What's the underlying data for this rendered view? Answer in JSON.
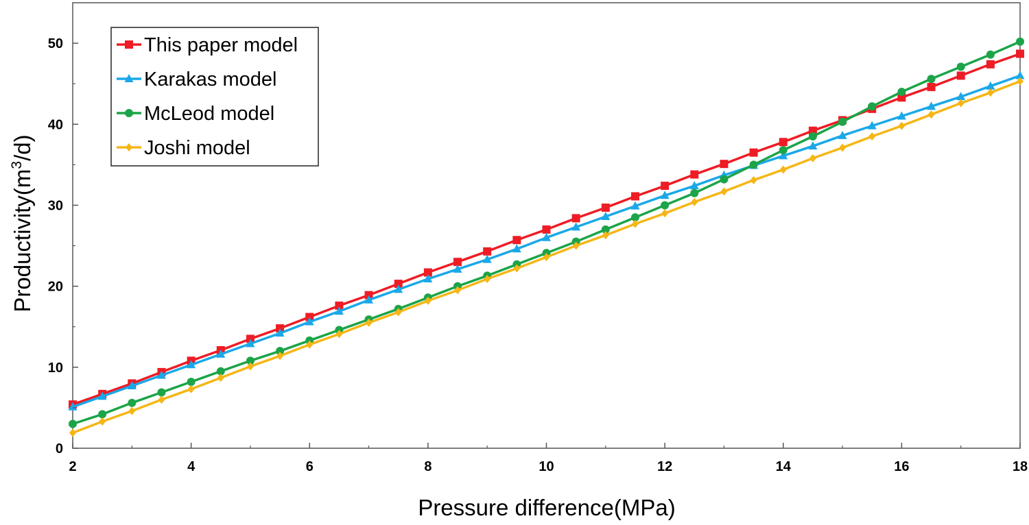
{
  "chart_data": {
    "type": "line",
    "xlabel": "Pressure difference(MPa)",
    "ylabel_prefix": "Productivity(m",
    "ylabel_sup": "3",
    "ylabel_suffix": "/d)",
    "xlim": [
      2,
      18
    ],
    "ylim": [
      0,
      55
    ],
    "xticks": [
      2,
      4,
      6,
      8,
      10,
      12,
      14,
      16,
      18
    ],
    "yticks": [
      0,
      10,
      20,
      30,
      40,
      50
    ],
    "grid": false,
    "legend_position": "top-left",
    "x": [
      2,
      2.5,
      3,
      3.5,
      4,
      4.5,
      5,
      5.5,
      6,
      6.5,
      7,
      7.5,
      8,
      8.5,
      9,
      9.5,
      10,
      10.5,
      11,
      11.5,
      12,
      12.5,
      13,
      13.5,
      14,
      14.5,
      15,
      15.5,
      16,
      16.5,
      17,
      17.5,
      18
    ],
    "series": [
      {
        "name": "This paper model",
        "color": "#ee1c25",
        "marker": "square",
        "values": [
          5.4,
          6.7,
          8.0,
          9.4,
          10.8,
          12.1,
          13.5,
          14.8,
          16.2,
          17.6,
          18.9,
          20.3,
          21.7,
          23.0,
          24.3,
          25.7,
          27.0,
          28.4,
          29.7,
          31.1,
          32.4,
          33.8,
          35.1,
          36.5,
          37.8,
          39.2,
          40.5,
          41.9,
          43.3,
          44.6,
          46.0,
          47.4,
          48.7
        ]
      },
      {
        "name": "Karakas model",
        "color": "#1aa8e8",
        "marker": "triangle",
        "values": [
          5.1,
          6.4,
          7.7,
          9.0,
          10.3,
          11.6,
          12.9,
          14.2,
          15.6,
          16.9,
          18.3,
          19.6,
          20.9,
          22.1,
          23.3,
          24.6,
          26.0,
          27.3,
          28.6,
          29.9,
          31.2,
          32.4,
          33.7,
          34.9,
          36.1,
          37.3,
          38.6,
          39.8,
          41.0,
          42.2,
          43.4,
          44.7,
          46.0
        ]
      },
      {
        "name": "McLeod model",
        "color": "#1ca448",
        "marker": "circle",
        "values": [
          3.0,
          4.2,
          5.6,
          6.9,
          8.2,
          9.5,
          10.8,
          12.0,
          13.3,
          14.6,
          15.9,
          17.2,
          18.6,
          20.0,
          21.3,
          22.7,
          24.1,
          25.5,
          27.0,
          28.5,
          30.0,
          31.5,
          33.2,
          35.0,
          36.8,
          38.5,
          40.3,
          42.2,
          44.0,
          45.6,
          47.1,
          48.6,
          50.2
        ]
      },
      {
        "name": "Joshi model",
        "color": "#f5b616",
        "marker": "diamond",
        "values": [
          1.9,
          3.3,
          4.6,
          6.0,
          7.3,
          8.7,
          10.1,
          11.4,
          12.8,
          14.1,
          15.5,
          16.8,
          18.2,
          19.5,
          20.9,
          22.2,
          23.6,
          25.0,
          26.3,
          27.7,
          29.0,
          30.4,
          31.7,
          33.1,
          34.4,
          35.8,
          37.1,
          38.5,
          39.8,
          41.2,
          42.6,
          43.9,
          45.3
        ]
      }
    ]
  }
}
